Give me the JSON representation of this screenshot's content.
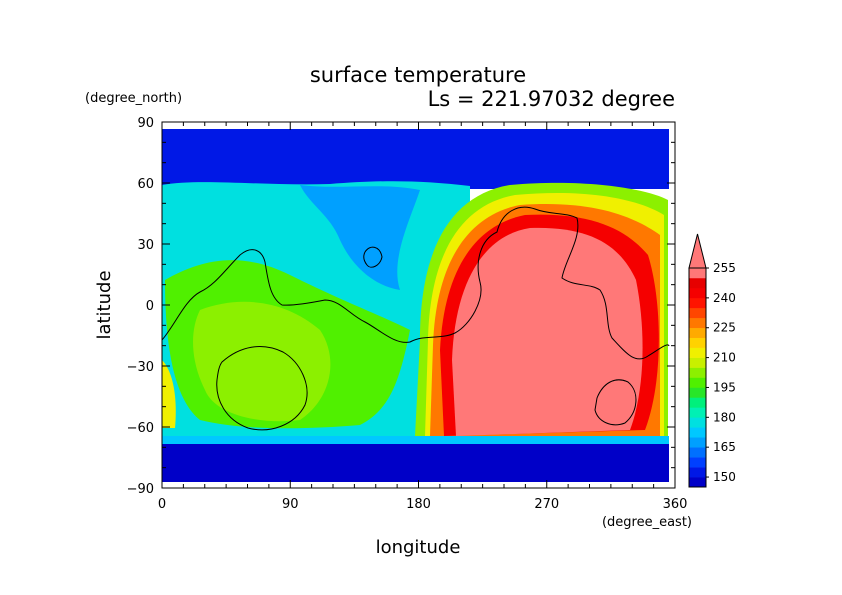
{
  "chart_data": {
    "type": "heatmap",
    "title": "surface temperature",
    "subtitle": "Ls = 221.97032 degree",
    "xlabel": "longitude",
    "ylabel": "latitude",
    "x_units": "(degree_east)",
    "y_units": "(degree_north)",
    "xlim": [
      0,
      360
    ],
    "ylim": [
      -90,
      90
    ],
    "x_ticks": [
      "0",
      "90",
      "180",
      "270",
      "360"
    ],
    "y_ticks": [
      "90",
      "60",
      "30",
      "0",
      "−30",
      "−60",
      "−90"
    ],
    "data_lat_range": [
      -87,
      87
    ],
    "colorbar": {
      "labels": [
        "255",
        "240",
        "225",
        "210",
        "195",
        "180",
        "165",
        "150"
      ],
      "levels": [
        145,
        150,
        155,
        160,
        165,
        170,
        175,
        180,
        185,
        190,
        195,
        200,
        205,
        210,
        215,
        220,
        225,
        230,
        235,
        240,
        245,
        250,
        255,
        260
      ],
      "colors": [
        "#0000c8",
        "#0018e6",
        "#0040ff",
        "#0070ff",
        "#00a0ff",
        "#00c8ff",
        "#00e0e0",
        "#00f0b4",
        "#00f07c",
        "#28e628",
        "#50f000",
        "#8cf000",
        "#c8f000",
        "#f0f000",
        "#ffd200",
        "#ffaa00",
        "#ff7800",
        "#ff4600",
        "#ff1400",
        "#f50000",
        "#e60000",
        "#ff7878"
      ],
      "extend": "max"
    },
    "contour": "black coastline / topography outlines"
  }
}
